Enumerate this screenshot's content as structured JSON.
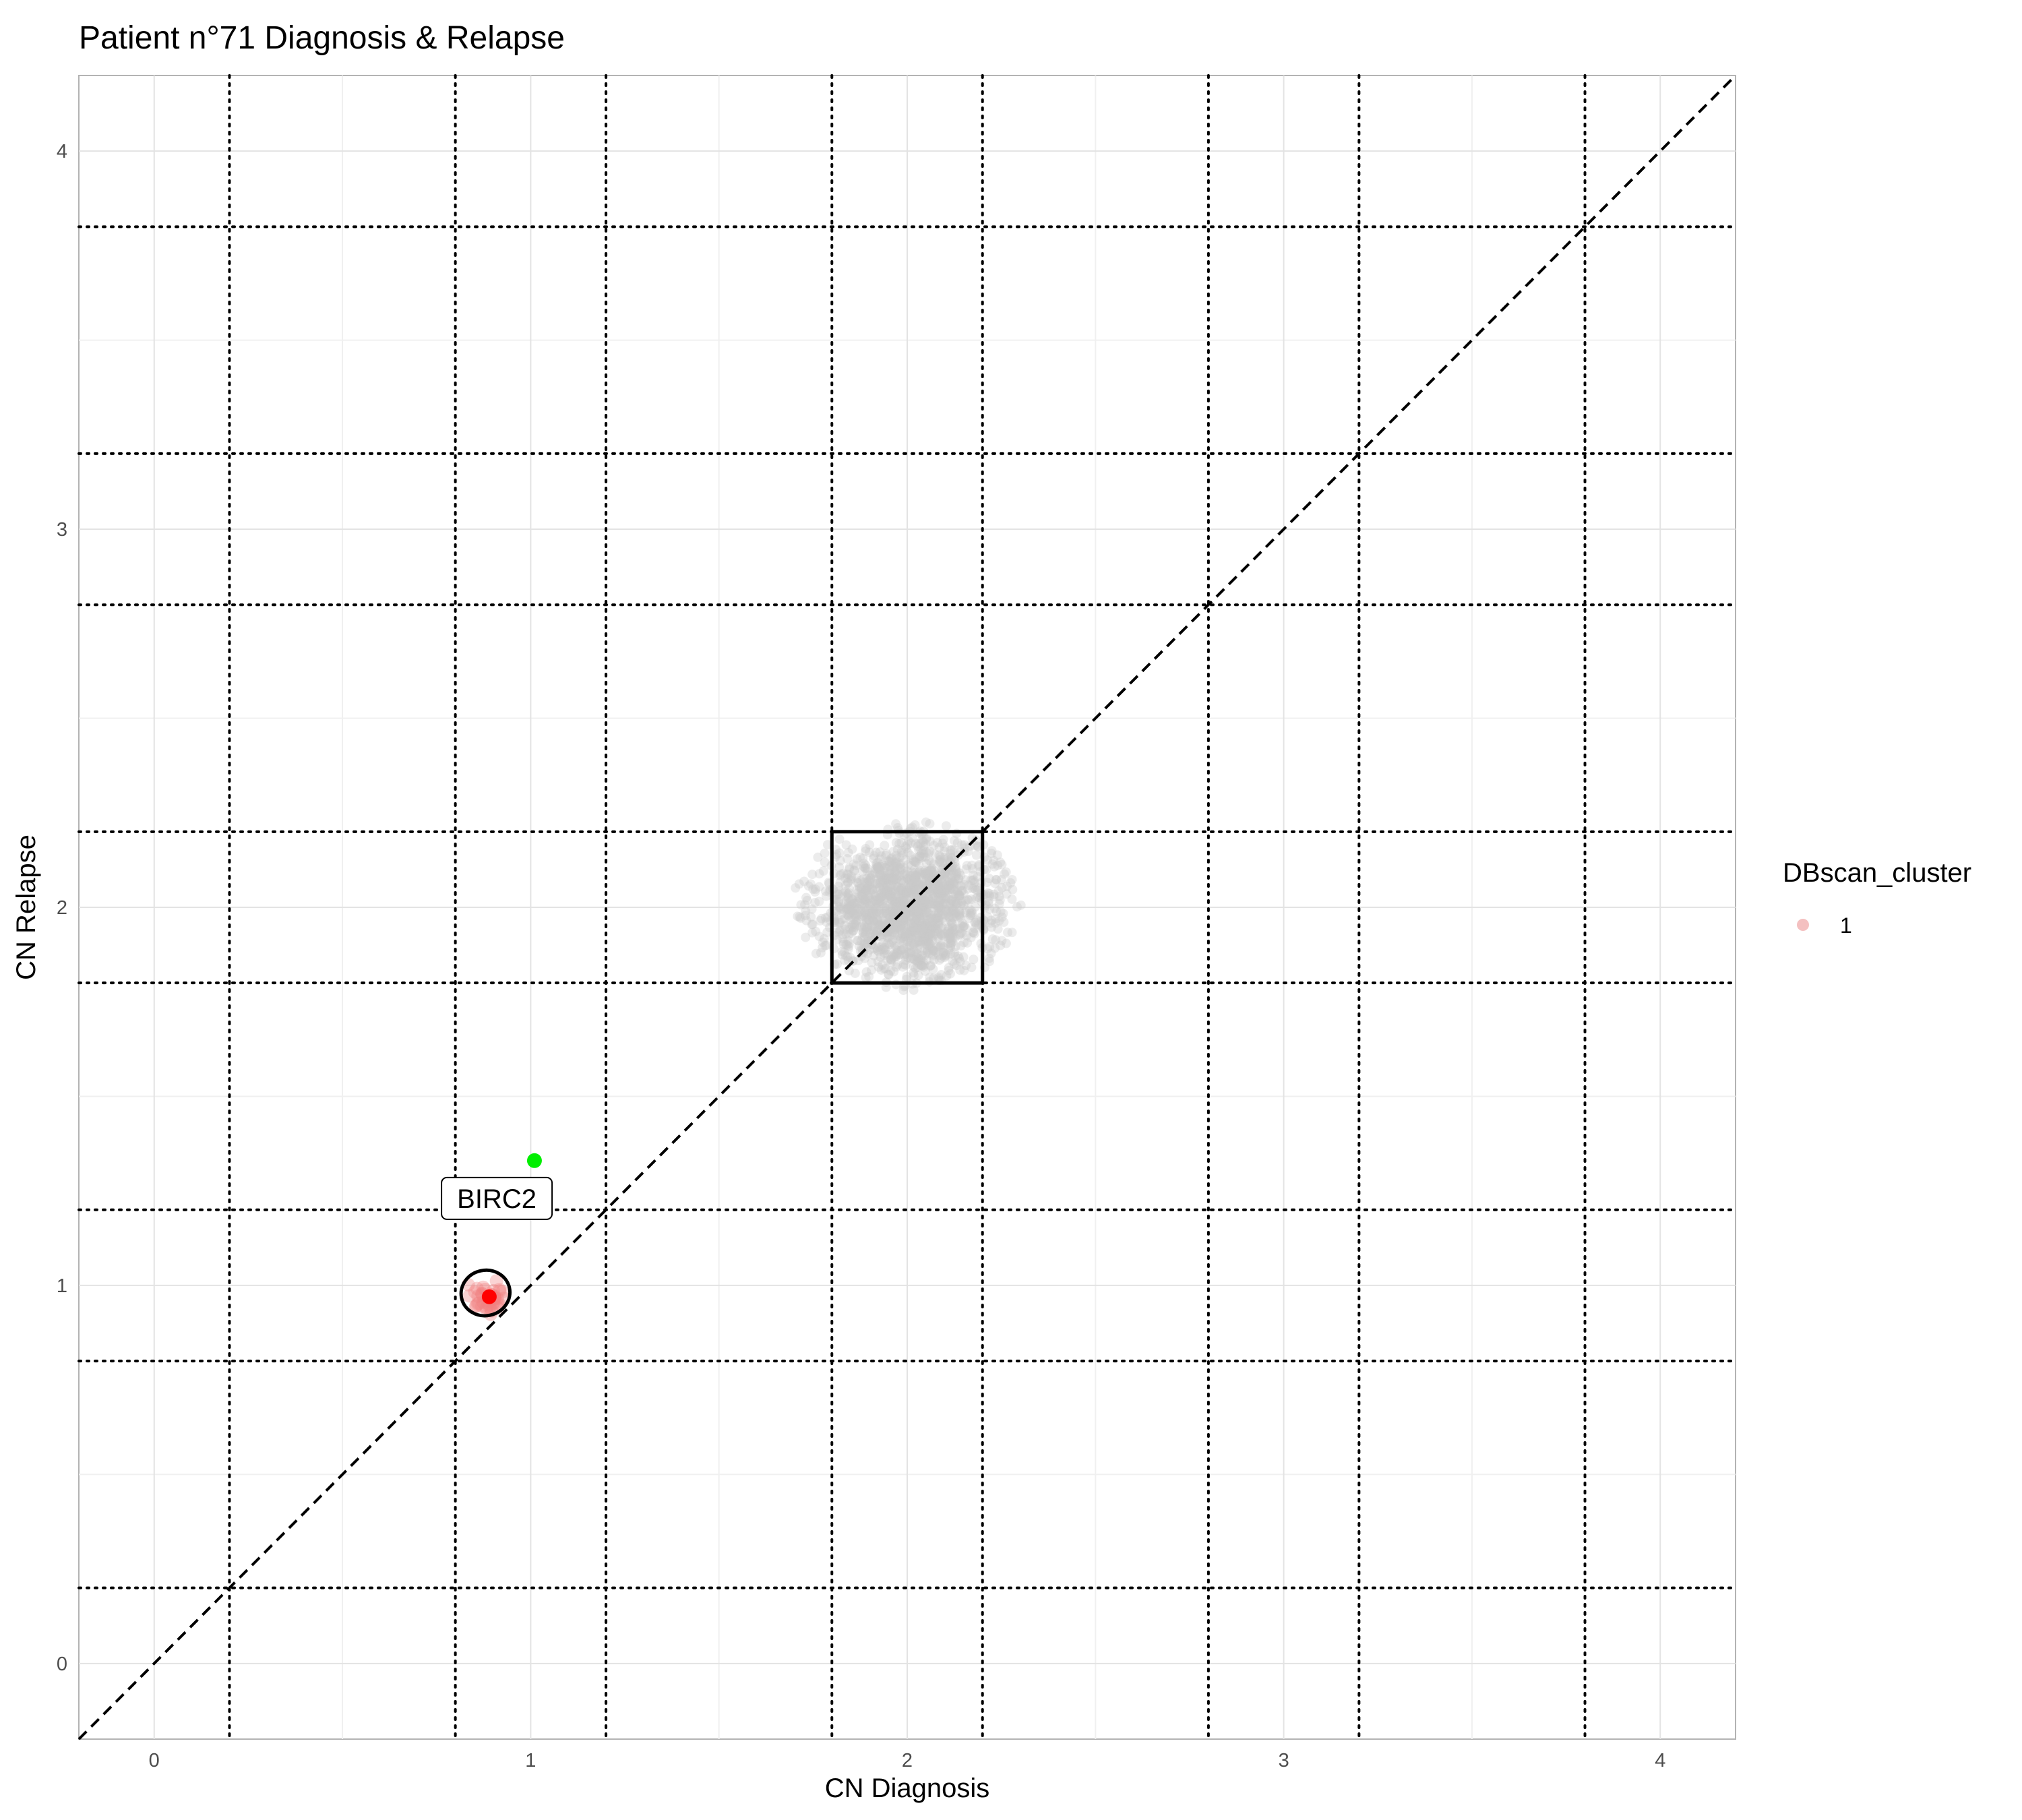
{
  "chart_data": {
    "type": "scatter",
    "title": "Patient n°71 Diagnosis & Relapse",
    "xlabel": "CN Diagnosis",
    "ylabel": "CN Relapse",
    "xlim": [
      -0.2,
      4.2
    ],
    "ylim": [
      -0.2,
      4.2
    ],
    "x_ticks": [
      0,
      1,
      2,
      3,
      4
    ],
    "y_ticks": [
      0,
      1,
      2,
      3,
      4
    ],
    "x_tick_labels": [
      "0",
      "1",
      "2",
      "3",
      "4"
    ],
    "y_tick_labels": [
      "0",
      "1",
      "2",
      "3",
      "4"
    ],
    "minor_grid": [
      0.5,
      1.5,
      2.5,
      3.5
    ],
    "grid": true,
    "threshold_lines": [
      0.2,
      0.8,
      1.2,
      1.8,
      2.2,
      2.8,
      3.2,
      3.8
    ],
    "identity_line": true,
    "background_cloud": {
      "center": [
        2.0,
        2.0
      ],
      "spread": [
        0.12,
        0.09
      ],
      "count": 1800,
      "color": "#c8c8c8"
    },
    "box_region": {
      "x": [
        1.8,
        2.2
      ],
      "y": [
        1.8,
        2.2
      ]
    },
    "cluster_points": {
      "center": [
        0.88,
        0.97
      ],
      "spread": [
        0.025,
        0.025
      ],
      "count": 45,
      "color": "#f08080"
    },
    "cluster_center": {
      "x": 0.89,
      "y": 0.97,
      "color": "#ff0000"
    },
    "cluster_ellipse": {
      "cx": 0.88,
      "cy": 0.98,
      "rx": 0.065,
      "ry": 0.06
    },
    "highlight_point": {
      "x": 1.01,
      "y": 1.33,
      "color": "#00ee00"
    },
    "gene_label": {
      "text": "BIRC2",
      "x": 0.91,
      "y": 1.23
    },
    "legend": {
      "title": "DBscan_cluster",
      "items": [
        {
          "label": "1",
          "color": "#f4c0c0"
        }
      ],
      "position": "right"
    }
  }
}
